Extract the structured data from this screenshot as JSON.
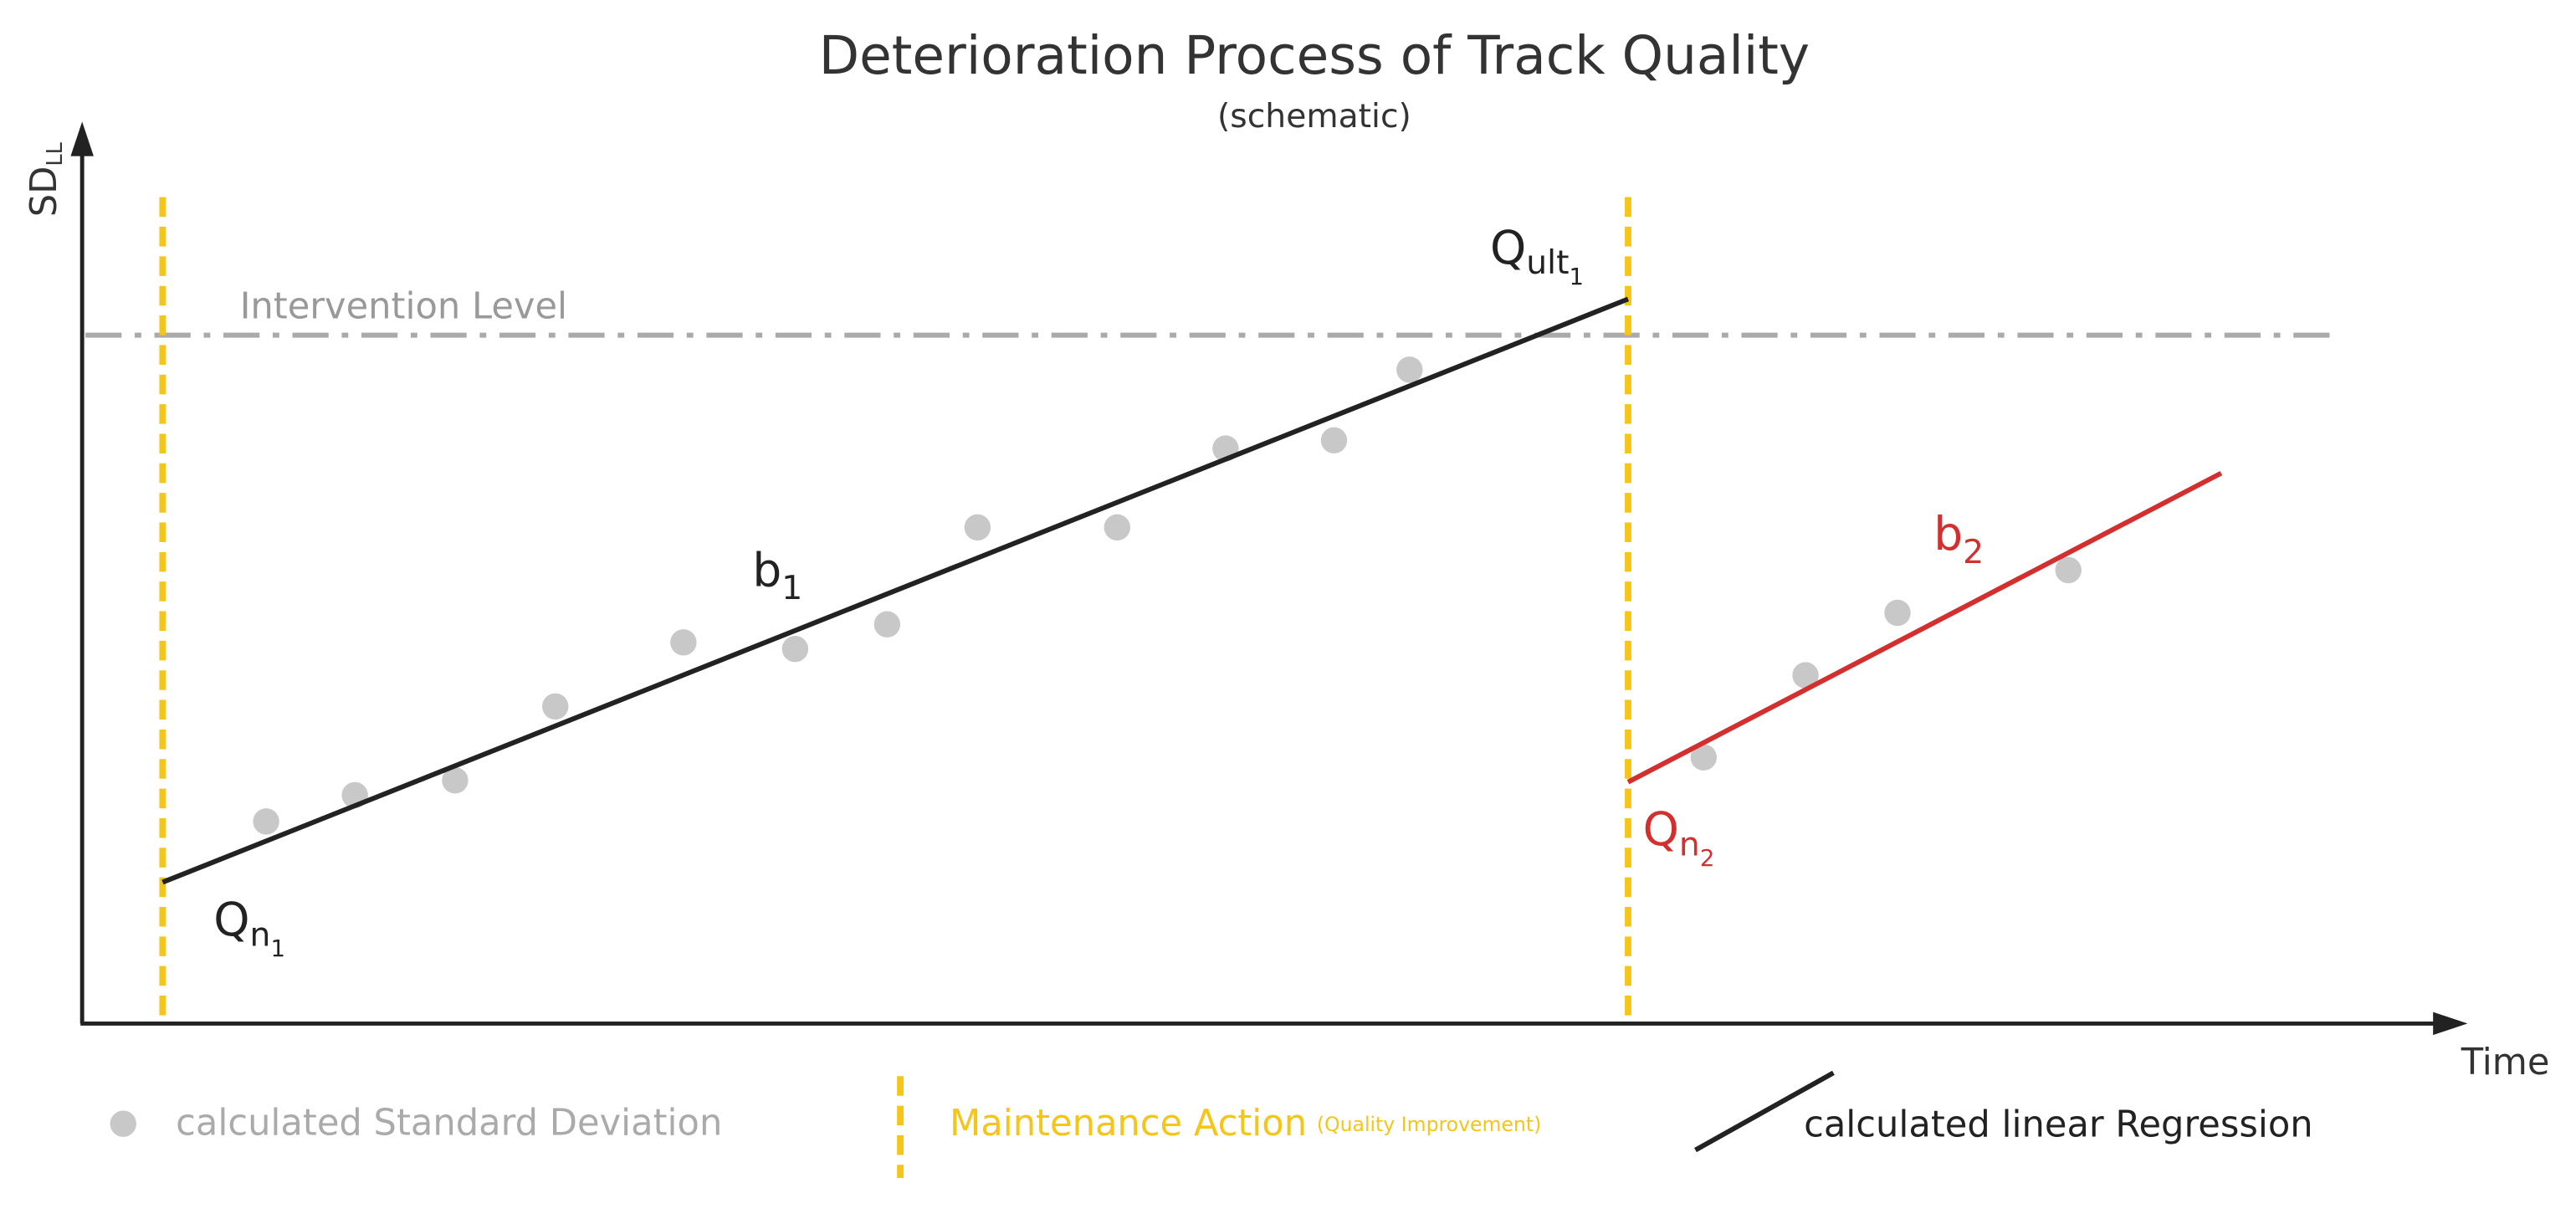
{
  "title": "Deterioration Process of Track Quality",
  "subtitle": "(schematic)",
  "y_axis": {
    "label": "SD",
    "subscript": "LL"
  },
  "x_axis": {
    "label": "Time"
  },
  "intervention_level": "Intervention Level",
  "labels": {
    "q_n1": {
      "base": "Q",
      "sub": "n",
      "subsub": "1"
    },
    "q_ult1": {
      "base": "Q",
      "sub": "ult",
      "subsub": "1"
    },
    "b1": {
      "base": "b",
      "sub": "1"
    },
    "b2": {
      "base": "b",
      "sub": "2"
    },
    "q_n2": {
      "base": "Q",
      "sub": "n",
      "subsub": "2"
    }
  },
  "legend": {
    "points": "calculated Standard Deviation",
    "maintenance": "Maintenance Action",
    "maintenance_note": "(Quality Improvement)",
    "regression": "calculated linear Regression"
  }
}
